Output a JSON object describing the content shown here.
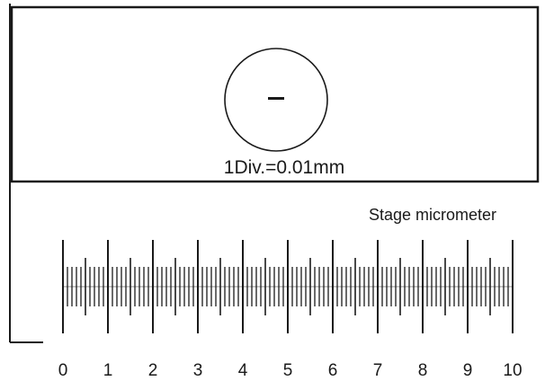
{
  "slide": {
    "label": "1Div.=0.01mm",
    "circle_mark": "–"
  },
  "caption": "Stage micrometer",
  "scale": {
    "major_labels": [
      "0",
      "1",
      "2",
      "3",
      "4",
      "5",
      "6",
      "7",
      "8",
      "9",
      "10"
    ],
    "divisions_per_major": 10
  },
  "colors": {
    "line": "#1a1a1a",
    "background": "#ffffff"
  }
}
